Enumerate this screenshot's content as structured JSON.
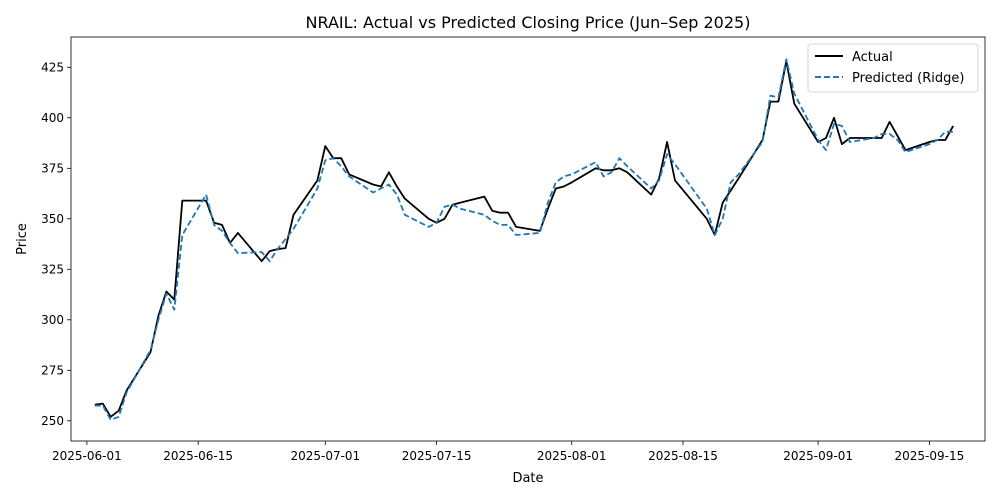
{
  "chart_data": {
    "type": "line",
    "title": "NRAIL: Actual vs Predicted Closing Price (Jun–Sep 2025)",
    "xlabel": "Date",
    "ylabel": "Price",
    "xlim": [
      "2025-05-30",
      "2025-09-22"
    ],
    "ylim": [
      240,
      440
    ],
    "x_ticks": [
      "2025-06-01",
      "2025-06-15",
      "2025-07-01",
      "2025-07-15",
      "2025-08-01",
      "2025-08-15",
      "2025-09-01",
      "2025-09-15"
    ],
    "y_ticks": [
      250,
      275,
      300,
      325,
      350,
      375,
      400,
      425
    ],
    "grid": false,
    "legend": "top-right",
    "series": [
      {
        "name": "Actual",
        "color": "#000000",
        "style": "solid",
        "x": [
          "2025-06-02",
          "2025-06-03",
          "2025-06-04",
          "2025-06-05",
          "2025-06-06",
          "2025-06-09",
          "2025-06-10",
          "2025-06-11",
          "2025-06-12",
          "2025-06-13",
          "2025-06-16",
          "2025-06-17",
          "2025-06-18",
          "2025-06-19",
          "2025-06-20",
          "2025-06-23",
          "2025-06-24",
          "2025-06-25",
          "2025-06-26",
          "2025-06-27",
          "2025-06-30",
          "2025-07-01",
          "2025-07-02",
          "2025-07-03",
          "2025-07-04",
          "2025-07-07",
          "2025-07-08",
          "2025-07-09",
          "2025-07-10",
          "2025-07-11",
          "2025-07-14",
          "2025-07-15",
          "2025-07-16",
          "2025-07-17",
          "2025-07-18",
          "2025-07-21",
          "2025-07-22",
          "2025-07-23",
          "2025-07-24",
          "2025-07-25",
          "2025-07-28",
          "2025-07-29",
          "2025-07-30",
          "2025-07-31",
          "2025-08-01",
          "2025-08-04",
          "2025-08-05",
          "2025-08-06",
          "2025-08-07",
          "2025-08-08",
          "2025-08-11",
          "2025-08-12",
          "2025-08-13",
          "2025-08-14",
          "2025-08-18",
          "2025-08-19",
          "2025-08-20",
          "2025-08-21",
          "2025-08-22",
          "2025-08-25",
          "2025-08-26",
          "2025-08-27",
          "2025-08-28",
          "2025-08-29",
          "2025-09-01",
          "2025-09-02",
          "2025-09-03",
          "2025-09-04",
          "2025-09-05",
          "2025-09-08",
          "2025-09-09",
          "2025-09-10",
          "2025-09-11",
          "2025-09-12",
          "2025-09-15",
          "2025-09-16",
          "2025-09-17",
          "2025-09-18"
        ],
        "values": [
          258,
          258.5,
          252,
          255,
          265,
          284,
          302,
          314,
          310,
          359,
          359,
          348,
          347,
          338,
          343,
          329,
          334,
          335,
          335.5,
          352,
          369,
          386,
          380,
          380,
          372,
          367,
          366,
          373,
          366,
          360,
          350,
          348,
          350,
          357,
          358,
          361,
          354,
          353,
          353,
          346,
          344,
          355,
          365,
          366,
          368,
          375,
          374,
          374,
          375,
          373,
          362,
          370,
          388,
          369,
          350,
          342,
          358,
          364,
          370,
          389,
          408,
          408,
          428,
          407,
          388,
          390,
          400,
          387,
          390,
          390,
          390,
          398,
          391,
          384,
          388,
          389,
          389,
          396
        ]
      },
      {
        "name": "Predicted (Ridge)",
        "color": "#1f77b4",
        "style": "dashed",
        "x": [
          "2025-06-02",
          "2025-06-03",
          "2025-06-04",
          "2025-06-05",
          "2025-06-06",
          "2025-06-09",
          "2025-06-10",
          "2025-06-11",
          "2025-06-12",
          "2025-06-13",
          "2025-06-16",
          "2025-06-17",
          "2025-06-18",
          "2025-06-19",
          "2025-06-20",
          "2025-06-23",
          "2025-06-24",
          "2025-06-25",
          "2025-06-26",
          "2025-06-27",
          "2025-06-30",
          "2025-07-01",
          "2025-07-02",
          "2025-07-03",
          "2025-07-04",
          "2025-07-07",
          "2025-07-08",
          "2025-07-09",
          "2025-07-10",
          "2025-07-11",
          "2025-07-14",
          "2025-07-15",
          "2025-07-16",
          "2025-07-17",
          "2025-07-18",
          "2025-07-21",
          "2025-07-22",
          "2025-07-23",
          "2025-07-24",
          "2025-07-25",
          "2025-07-28",
          "2025-07-29",
          "2025-07-30",
          "2025-07-31",
          "2025-08-01",
          "2025-08-04",
          "2025-08-05",
          "2025-08-06",
          "2025-08-07",
          "2025-08-08",
          "2025-08-11",
          "2025-08-12",
          "2025-08-13",
          "2025-08-14",
          "2025-08-18",
          "2025-08-19",
          "2025-08-20",
          "2025-08-21",
          "2025-08-22",
          "2025-08-25",
          "2025-08-26",
          "2025-08-27",
          "2025-08-28",
          "2025-08-29",
          "2025-09-01",
          "2025-09-02",
          "2025-09-03",
          "2025-09-04",
          "2025-09-05",
          "2025-09-08",
          "2025-09-09",
          "2025-09-10",
          "2025-09-11",
          "2025-09-12",
          "2025-09-15",
          "2025-09-16",
          "2025-09-17",
          "2025-09-18"
        ],
        "values": [
          257.5,
          257.5,
          250.5,
          252,
          264,
          285,
          300,
          313,
          305,
          342,
          362,
          347,
          344,
          338,
          333,
          333.5,
          329,
          335,
          340,
          345,
          365,
          379,
          380,
          376,
          371,
          363,
          365,
          367,
          362,
          352,
          346,
          348,
          356,
          357,
          355,
          352,
          349,
          347,
          347,
          342,
          343,
          358,
          368,
          371,
          372,
          378,
          371,
          373,
          380,
          376,
          365,
          369,
          382,
          377,
          355,
          342,
          350,
          368,
          372,
          388,
          411,
          410,
          429,
          412,
          389,
          384,
          397,
          396,
          388,
          390,
          392,
          392,
          389,
          383,
          387,
          389,
          393,
          393
        ]
      }
    ]
  }
}
